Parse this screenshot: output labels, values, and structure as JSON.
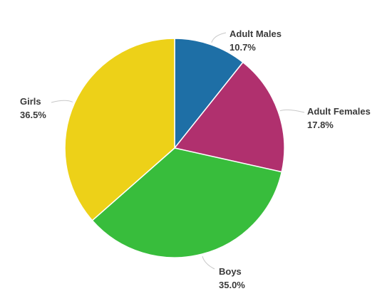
{
  "chart_data": {
    "type": "pie",
    "title": "",
    "slices": [
      {
        "label": "Adult Males",
        "value": 10.7,
        "value_text": "10.7%",
        "color": "#1e6fa6"
      },
      {
        "label": "Adult Females",
        "value": 17.8,
        "value_text": "17.8%",
        "color": "#b0306e"
      },
      {
        "label": "Boys",
        "value": 35.0,
        "value_text": "35.0%",
        "color": "#38bd3c"
      },
      {
        "label": "Girls",
        "value": 36.5,
        "value_text": "36.5%",
        "color": "#edd118"
      }
    ],
    "start_angle_deg": 0,
    "direction": "clockwise",
    "legend": "none",
    "data_labels": "outside"
  }
}
